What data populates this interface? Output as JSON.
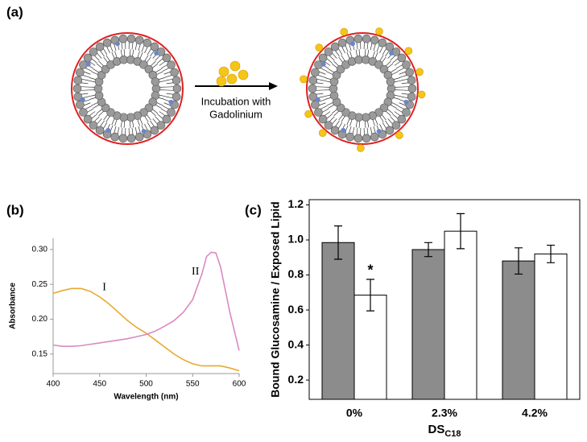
{
  "figure": {
    "panel_a": {
      "label": "(a)",
      "caption_lines": [
        "Incubation with",
        "Gadolinium"
      ]
    }
  },
  "chart_data": [
    {
      "type": "line",
      "label": "(b)",
      "x_label": "Wavelength (nm)",
      "y_label": "Absorbance",
      "x": [
        400,
        410,
        420,
        430,
        440,
        450,
        460,
        470,
        480,
        490,
        500,
        510,
        520,
        530,
        540,
        550,
        560,
        565,
        570,
        575,
        580,
        590,
        600
      ],
      "series": [
        {
          "color": "#e8a930",
          "values": [
            0.237,
            0.241,
            0.244,
            0.244,
            0.24,
            0.232,
            0.222,
            0.21,
            0.198,
            0.188,
            0.18,
            0.17,
            0.16,
            0.15,
            0.142,
            0.136,
            0.133,
            0.133,
            0.133,
            0.133,
            0.133,
            0.13,
            0.126
          ]
        },
        {
          "color": "#d88ac0",
          "values": [
            0.163,
            0.161,
            0.161,
            0.162,
            0.164,
            0.166,
            0.168,
            0.17,
            0.172,
            0.175,
            0.178,
            0.183,
            0.19,
            0.198,
            0.21,
            0.228,
            0.265,
            0.29,
            0.296,
            0.295,
            0.275,
            0.21,
            0.155
          ]
        }
      ],
      "annotations": [
        {
          "text": "I",
          "x": 455,
          "y": 0.245
        },
        {
          "text": "II",
          "x": 553,
          "y": 0.268
        }
      ],
      "xlim": [
        400,
        600
      ],
      "xticks": [
        400,
        450,
        500,
        550,
        600
      ],
      "ylim": [
        0.122,
        0.316
      ],
      "yticks": [
        0.15,
        {
          "value": 0.2,
          "label": "0.20"
        },
        0.25,
        {
          "value": 0.3,
          "label": "0.30"
        }
      ]
    },
    {
      "type": "bar",
      "label": "(c)",
      "x_label": "DS",
      "x_label_sub": "C18",
      "y_label": "Bound Glucosamine / Exposed Lipid",
      "categories": [
        "0%",
        "2.3%",
        "4.2%"
      ],
      "series": [
        {
          "color": "#8c8c8c",
          "values": [
            0.985,
            0.945,
            0.88
          ],
          "errors": [
            0.095,
            0.04,
            0.075
          ]
        },
        {
          "color": "#ffffff",
          "values": [
            0.685,
            1.05,
            0.92
          ],
          "errors": [
            0.09,
            0.1,
            0.05
          ]
        }
      ],
      "annotations": [
        {
          "text": "*",
          "category": 0,
          "series": 1
        }
      ],
      "ylim": [
        0.09,
        1.23
      ],
      "yticks": [
        0.2,
        0.4,
        0.6,
        0.8,
        {
          "value": 1.0,
          "label": "1.0"
        },
        1.2
      ]
    }
  ]
}
